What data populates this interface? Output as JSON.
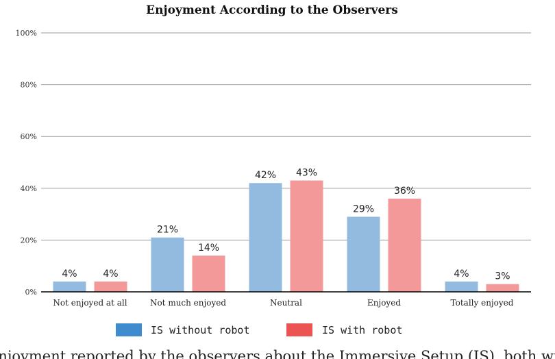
{
  "chart_data": {
    "type": "bar",
    "title": "Enjoyment According to the Observers",
    "categories": [
      "Not enjoyed at all",
      "Not much enjoyed",
      "Neutral",
      "Enjoyed",
      "Totally enjoyed"
    ],
    "series": [
      {
        "name": "IS without robot",
        "values": [
          4,
          21,
          42,
          29,
          4
        ],
        "labels": [
          "4%",
          "21%",
          "42%",
          "29%",
          "4%"
        ],
        "color": "#93bbdf"
      },
      {
        "name": "IS with robot",
        "values": [
          4,
          14,
          43,
          36,
          3
        ],
        "labels": [
          "4%",
          "14%",
          "43%",
          "36%",
          "3%"
        ],
        "color": "#f4999a"
      }
    ],
    "legend_colors": [
      "#3e8ccd",
      "#ec5353"
    ],
    "ylim": [
      0,
      100
    ],
    "yticks": [
      0,
      20,
      40,
      60,
      80,
      100
    ],
    "ytick_labels": [
      "0%",
      "20%",
      "40%",
      "60%",
      "80%",
      "100%"
    ],
    "grid": true,
    "legend": "bottom"
  },
  "caption": "Enjoyment reported by the observers about the Immersive Setup (IS), both with"
}
